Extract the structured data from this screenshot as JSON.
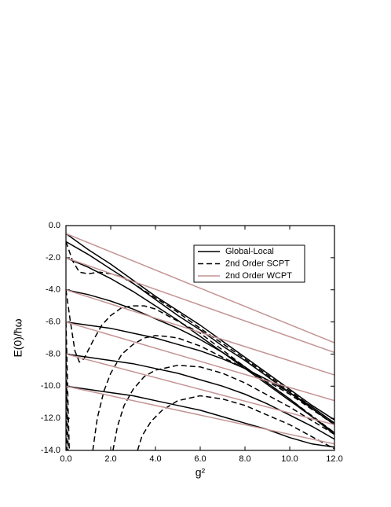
{
  "chart_data": {
    "type": "line",
    "x_label": "g²",
    "y_label": "E(0)/ħω",
    "xlim": [
      0,
      12
    ],
    "ylim": [
      -14,
      0
    ],
    "xticks": [
      {
        "value": 0,
        "label": "0.0"
      },
      {
        "value": 2,
        "label": "2.0"
      },
      {
        "value": 4,
        "label": "4.0"
      },
      {
        "value": 6,
        "label": "6.0"
      },
      {
        "value": 8,
        "label": "8.0"
      },
      {
        "value": 10,
        "label": "10.0"
      },
      {
        "value": 12,
        "label": "12.0"
      }
    ],
    "yticks": [
      {
        "value": 0,
        "label": "0.0"
      },
      {
        "value": -2,
        "label": "-2.0"
      },
      {
        "value": -4,
        "label": "-4.0"
      },
      {
        "value": -6,
        "label": "-6.0"
      },
      {
        "value": -8,
        "label": "-8.0"
      },
      {
        "value": -10,
        "label": "-10.0"
      },
      {
        "value": -12,
        "label": "-12.0"
      },
      {
        "value": -14,
        "label": "-14.0"
      }
    ],
    "legend": "upper right",
    "series": [
      {
        "name": "Global-Local",
        "color": "#000000",
        "dashed": false,
        "curves": [
          {
            "x": [
              0,
              1,
              2,
              3,
              4,
              5,
              6,
              7,
              8,
              9,
              10,
              11,
              12
            ],
            "values": [
              -0.5,
              -1.5,
              -2.4,
              -3.4,
              -4.4,
              -5.3,
              -6.2,
              -7.2,
              -8.2,
              -9.2,
              -10.2,
              -11.2,
              -12.1
            ]
          },
          {
            "x": [
              0,
              1,
              2,
              3,
              4,
              5,
              6,
              7,
              8,
              9,
              10,
              11,
              12
            ],
            "values": [
              -1.0,
              -1.8,
              -2.7,
              -3.6,
              -4.6,
              -5.6,
              -6.5,
              -7.5,
              -8.4,
              -9.4,
              -10.4,
              -11.4,
              -12.4
            ]
          },
          {
            "x": [
              0,
              1,
              2,
              3,
              4,
              5,
              6,
              7,
              8,
              9,
              10,
              11,
              12
            ],
            "values": [
              -2.0,
              -2.6,
              -3.3,
              -4.1,
              -5.0,
              -5.9,
              -6.9,
              -7.9,
              -8.9,
              -9.9,
              -10.9,
              -11.9,
              -12.9
            ]
          },
          {
            "x": [
              0,
              1,
              2,
              3,
              4,
              5,
              6,
              7,
              8,
              9,
              10,
              11,
              12
            ],
            "values": [
              -4.0,
              -4.3,
              -4.7,
              -5.2,
              -5.8,
              -6.4,
              -7.1,
              -7.9,
              -8.8,
              -9.8,
              -10.8,
              -11.9,
              -13.0
            ]
          },
          {
            "x": [
              0,
              1,
              2,
              3,
              4,
              5,
              6,
              7,
              8,
              9,
              10,
              11,
              12
            ],
            "values": [
              -6.0,
              -6.2,
              -6.4,
              -6.7,
              -7.0,
              -7.4,
              -7.8,
              -8.3,
              -8.9,
              -9.6,
              -10.4,
              -11.3,
              -12.3
            ]
          },
          {
            "x": [
              0,
              1,
              2,
              3,
              4,
              5,
              6,
              7,
              8,
              9,
              10,
              11,
              12
            ],
            "values": [
              -8.0,
              -8.2,
              -8.4,
              -8.6,
              -8.9,
              -9.2,
              -9.6,
              -10.0,
              -10.5,
              -11.1,
              -11.8,
              -12.5,
              -13.3
            ]
          },
          {
            "x": [
              0,
              1,
              2,
              3,
              4,
              5,
              6,
              7,
              8,
              9,
              10,
              11,
              12
            ],
            "values": [
              -10.0,
              -10.2,
              -10.4,
              -10.6,
              -10.9,
              -11.2,
              -11.5,
              -11.9,
              -12.3,
              -12.7,
              -13.2,
              -13.6,
              -13.8
            ]
          }
        ]
      },
      {
        "name": "2nd Order SCPT",
        "color": "#000000",
        "dashed": true,
        "curves": [
          {
            "x": [
              0,
              0.3,
              0.6,
              1,
              1.5,
              2,
              2.5,
              3,
              4,
              5,
              6,
              8,
              10,
              12
            ],
            "values": [
              -1.0,
              -2.2,
              -2.9,
              -3.0,
              -2.9,
              -3.0,
              -3.2,
              -3.6,
              -4.5,
              -5.4,
              -6.4,
              -8.3,
              -10.3,
              -12.3
            ]
          },
          {
            "x": [
              0,
              0.2,
              0.4,
              0.6,
              0.8,
              1.2,
              1.6,
              2,
              2.5,
              3,
              3.5,
              4,
              6,
              8,
              10,
              12
            ],
            "values": [
              -4.0,
              -6.0,
              -7.8,
              -8.5,
              -8.3,
              -7.2,
              -6.2,
              -5.6,
              -5.1,
              -5.0,
              -5.0,
              -5.2,
              -6.7,
              -8.8,
              -10.8,
              -12.9
            ]
          },
          {
            "x": [
              1.2,
              1.4,
              1.7,
              2,
              2.5,
              3,
              3.5,
              4,
              4.5,
              5,
              6,
              8,
              10,
              12
            ],
            "values": [
              -14,
              -12,
              -10.3,
              -9.2,
              -8.0,
              -7.4,
              -7.0,
              -6.85,
              -6.9,
              -7.0,
              -7.5,
              -8.9,
              -10.5,
              -12.4
            ]
          },
          {
            "x": [
              2.1,
              2.3,
              2.6,
              3,
              3.5,
              4,
              5,
              6,
              7,
              8,
              10,
              12
            ],
            "values": [
              -14,
              -12.5,
              -11.2,
              -10.2,
              -9.4,
              -9.0,
              -8.7,
              -8.8,
              -9.2,
              -9.8,
              -11.3,
              -13.0
            ]
          },
          {
            "x": [
              3.2,
              3.4,
              3.8,
              4.3,
              5,
              6,
              7,
              8,
              10,
              12
            ],
            "values": [
              -14,
              -13.1,
              -12.2,
              -11.5,
              -10.9,
              -10.6,
              -10.8,
              -11.2,
              -12.4,
              -13.9
            ]
          },
          {
            "x": [
              0,
              0.05,
              0.1,
              0.15
            ],
            "values": [
              -6.0,
              -8.5,
              -11.5,
              -14
            ]
          },
          {
            "x": [
              0,
              0.05,
              0.1
            ],
            "values": [
              -8.0,
              -11.0,
              -14
            ]
          },
          {
            "x": [
              0,
              0.05
            ],
            "values": [
              -10.0,
              -14
            ]
          }
        ]
      },
      {
        "name": "2nd Order WCPT",
        "color": "#c49494",
        "dashed": false,
        "curves": [
          {
            "x": [
              0,
              12
            ],
            "values": [
              -0.5,
              -7.3
            ]
          },
          {
            "x": [
              0,
              12
            ],
            "values": [
              -2.0,
              -7.9
            ]
          },
          {
            "x": [
              0,
              12
            ],
            "values": [
              -4.0,
              -9.3
            ]
          },
          {
            "x": [
              0,
              12
            ],
            "values": [
              -6.0,
              -10.9
            ]
          },
          {
            "x": [
              0,
              12
            ],
            "values": [
              -8.0,
              -12.4
            ]
          },
          {
            "x": [
              0,
              12
            ],
            "values": [
              -10.0,
              -13.6
            ]
          }
        ]
      }
    ]
  }
}
